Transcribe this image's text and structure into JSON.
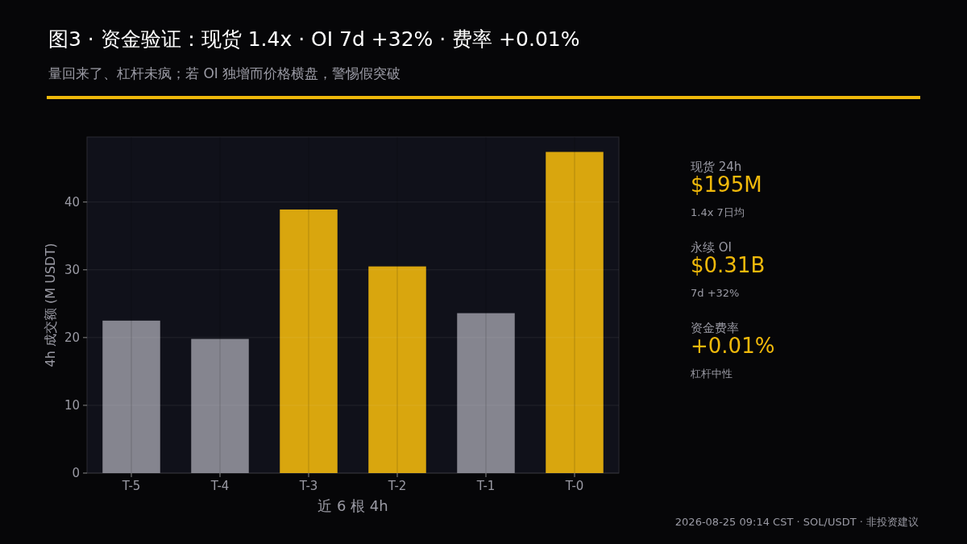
{
  "chart_data": [
    {
      "type": "bar",
      "title": "图3 · 资金验证：现货 1.4x · OI 7d +32% · 费率 +0.01%",
      "subtitle": "量回来了、杠杆未疯；若 OI 独增而价格横盘，警惕假突破",
      "xlabel": "近 6 根 4h",
      "ylabel": "4h 成交额 (M USDT)",
      "categories": [
        "T-5",
        "T-4",
        "T-3",
        "T-2",
        "T-1",
        "T-0"
      ],
      "values": [
        22.5,
        19.8,
        38.9,
        30.5,
        23.6,
        47.4
      ],
      "colors": [
        "#85858f",
        "#85858f",
        "#d9a60e",
        "#d9a60e",
        "#85858f",
        "#d9a60e"
      ],
      "ylim": [
        0,
        49.6
      ],
      "yticks": [
        0,
        10,
        20,
        30,
        40
      ],
      "grid": true,
      "annotations": [
        "2026-08-25 09:14 CST · SOL/USDT · 非投资建议"
      ]
    },
    {
      "type": "other",
      "annotations": [
        "现货 24h",
        "$195M",
        "1.4x 7日均",
        "永续 OI",
        "$0.31B",
        "7d +32%",
        "资金费率",
        "+0.01%",
        "杠杆中性"
      ]
    }
  ]
}
